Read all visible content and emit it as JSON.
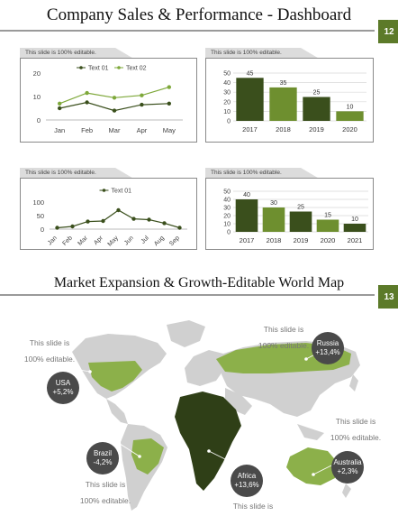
{
  "slide1": {
    "title": "Company Sales & Performance - Dashboard",
    "page_number": "12",
    "editable_note": "This slide is 100% editable."
  },
  "slide2": {
    "title": "Market Expansion & Growth-Editable World Map",
    "page_number": "13",
    "labels": [
      {
        "line1": "This slide is",
        "line2": "100% editable."
      },
      {
        "line1": "This slide is",
        "line2": "100% editable."
      },
      {
        "line1": "This slide is",
        "line2": "100% editable."
      },
      {
        "line1": "This slide is",
        "line2": "100% editable."
      },
      {
        "line1": "This slide is",
        "line2": ""
      }
    ],
    "regions": [
      {
        "name": "USA",
        "value": "+5,2%"
      },
      {
        "name": "Russia",
        "value": "+13,4%"
      },
      {
        "name": "Brazil",
        "value": "-4,2%"
      },
      {
        "name": "Africa",
        "value": "+13,6%"
      },
      {
        "name": "Australia",
        "value": "+2,3%"
      }
    ],
    "colors": {
      "dark": "#2f3f17",
      "light": "#8cb04a",
      "land": "#d0d0d0",
      "bubble": "#4a4a4a"
    }
  },
  "colors": {
    "accent": "#5c7a29",
    "dark_bar": "#3a4f1c",
    "light_bar": "#6e8f2f",
    "line1": "#3a4f1c",
    "line2": "#7ea83a"
  },
  "chart_data": [
    {
      "type": "line",
      "categories": [
        "Jan",
        "Feb",
        "Mar",
        "Apr",
        "May"
      ],
      "series": [
        {
          "name": "Text 01",
          "values": [
            5,
            7.5,
            4,
            6.5,
            7
          ]
        },
        {
          "name": "Text 02",
          "values": [
            7,
            11.5,
            9.5,
            10.5,
            14
          ]
        }
      ],
      "ylim": [
        0,
        20
      ],
      "yticks": [
        0,
        10,
        20
      ],
      "legend": "top",
      "grid": false
    },
    {
      "type": "bar",
      "categories": [
        "2017",
        "2018",
        "2019",
        "2020"
      ],
      "values": [
        45,
        35,
        25,
        10
      ],
      "data_labels": [
        "45",
        "35",
        "25",
        "10"
      ],
      "ylim": [
        0,
        50
      ],
      "yticks": [
        0,
        10,
        20,
        30,
        40,
        50
      ],
      "grid": true
    },
    {
      "type": "line",
      "categories": [
        "Jan",
        "Feb",
        "Mar",
        "Apr",
        "May",
        "Jun",
        "Jul",
        "Aug",
        "Sep"
      ],
      "series": [
        {
          "name": "Text 01",
          "values": [
            5,
            10,
            28,
            30,
            70,
            38,
            35,
            22,
            5
          ]
        }
      ],
      "ylim": [
        0,
        100
      ],
      "yticks": [
        0,
        50,
        100
      ],
      "legend": "top",
      "grid": false
    },
    {
      "type": "bar",
      "categories": [
        "2017",
        "2018",
        "2019",
        "2020",
        "2021"
      ],
      "values": [
        40,
        30,
        25,
        15,
        10
      ],
      "data_labels": [
        "40",
        "30",
        "25",
        "15",
        "10"
      ],
      "ylim": [
        0,
        50
      ],
      "yticks": [
        0,
        10,
        20,
        30,
        40,
        50
      ],
      "grid": true
    }
  ]
}
